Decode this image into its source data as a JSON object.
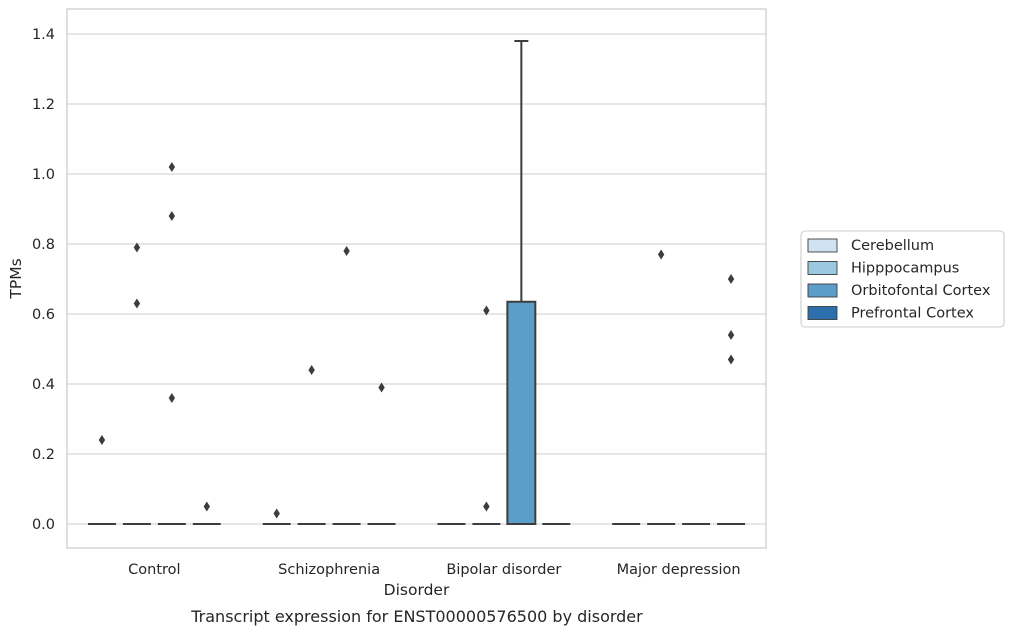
{
  "caption": "Transcript expression for ENST00000576500 by disorder",
  "chart_data": {
    "type": "box",
    "xlabel": "Disorder",
    "ylabel": "TPMs",
    "ylim": [
      -0.07,
      1.45
    ],
    "yticks": [
      0.0,
      0.2,
      0.4,
      0.6,
      0.8,
      1.0,
      1.2,
      1.4
    ],
    "ytick_labels": [
      "0.0",
      "0.2",
      "0.4",
      "0.6",
      "0.8",
      "1.0",
      "1.2",
      "1.4"
    ],
    "grid": "horizontal",
    "legend_position": "right",
    "categories": [
      "Control",
      "Schizophrenia",
      "Bipolar disorder",
      "Major depression"
    ],
    "series": [
      {
        "name": "Cerebellum",
        "color": "#d0e2f2",
        "boxes": [
          {
            "q1": 0,
            "median": 0,
            "q3": 0,
            "whisker_low": 0,
            "whisker_high": 0,
            "outliers": [
              0.24
            ]
          },
          {
            "q1": 0,
            "median": 0,
            "q3": 0,
            "whisker_low": 0,
            "whisker_high": 0,
            "outliers": [
              0.03
            ]
          },
          {
            "q1": 0,
            "median": 0,
            "q3": 0,
            "whisker_low": 0,
            "whisker_high": 0,
            "outliers": []
          },
          {
            "q1": 0,
            "median": 0,
            "q3": 0,
            "whisker_low": 0,
            "whisker_high": 0,
            "outliers": []
          }
        ]
      },
      {
        "name": "Hipppocampus",
        "color": "#9ac8e0",
        "boxes": [
          {
            "q1": 0,
            "median": 0,
            "q3": 0,
            "whisker_low": 0,
            "whisker_high": 0,
            "outliers": [
              0.79,
              0.63
            ]
          },
          {
            "q1": 0,
            "median": 0,
            "q3": 0,
            "whisker_low": 0,
            "whisker_high": 0,
            "outliers": [
              0.44
            ]
          },
          {
            "q1": 0,
            "median": 0,
            "q3": 0,
            "whisker_low": 0,
            "whisker_high": 0,
            "outliers": [
              0.61,
              0.05
            ]
          },
          {
            "q1": 0,
            "median": 0,
            "q3": 0,
            "whisker_low": 0,
            "whisker_high": 0,
            "outliers": [
              0.77
            ]
          }
        ]
      },
      {
        "name": "Orbitofontal Cortex",
        "color": "#5a9ec9",
        "boxes": [
          {
            "q1": 0,
            "median": 0,
            "q3": 0,
            "whisker_low": 0,
            "whisker_high": 0,
            "outliers": [
              1.02,
              0.88,
              0.36
            ]
          },
          {
            "q1": 0,
            "median": 0,
            "q3": 0,
            "whisker_low": 0,
            "whisker_high": 0,
            "outliers": [
              0.78
            ]
          },
          {
            "q1": 0,
            "median": 0,
            "q3": 0.635,
            "whisker_low": 0,
            "whisker_high": 1.38,
            "outliers": []
          },
          {
            "q1": 0,
            "median": 0,
            "q3": 0,
            "whisker_low": 0,
            "whisker_high": 0,
            "outliers": []
          }
        ]
      },
      {
        "name": "Prefrontal Cortex",
        "color": "#2c6fac",
        "boxes": [
          {
            "q1": 0,
            "median": 0,
            "q3": 0,
            "whisker_low": 0,
            "whisker_high": 0,
            "outliers": [
              0.05
            ]
          },
          {
            "q1": 0,
            "median": 0,
            "q3": 0,
            "whisker_low": 0,
            "whisker_high": 0,
            "outliers": [
              0.39
            ]
          },
          {
            "q1": 0,
            "median": 0,
            "q3": 0,
            "whisker_low": 0,
            "whisker_high": 0,
            "outliers": []
          },
          {
            "q1": 0,
            "median": 0,
            "q3": 0,
            "whisker_low": 0,
            "whisker_high": 0,
            "outliers": [
              0.7,
              0.54,
              0.47
            ]
          }
        ]
      }
    ]
  }
}
